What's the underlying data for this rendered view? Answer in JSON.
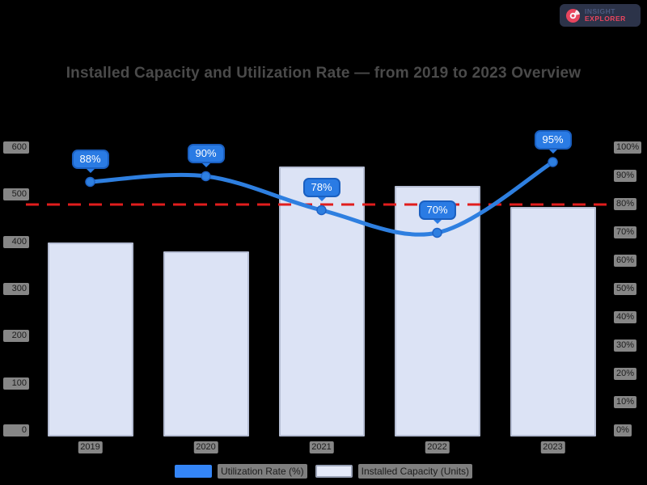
{
  "logo": {
    "line1": "INSIGHT",
    "line2": "EXPLORER"
  },
  "title": "Installed Capacity and Utilization Rate — from 2019 to 2023 Overview",
  "chart_data": {
    "type": "bar",
    "title": "Installed Capacity and Utilization Rate — from 2019 to 2023 Overview",
    "categories": [
      "2019",
      "2020",
      "2021",
      "2022",
      "2023"
    ],
    "series": [
      {
        "name": "Utilization Rate (%)",
        "chart_type": "line",
        "axis": "right",
        "values": [
          88,
          90,
          78,
          70,
          95
        ],
        "point_labels": [
          "88%",
          "90%",
          "78%",
          "70%",
          "95%"
        ],
        "color": "#2e7fe0"
      },
      {
        "name": "Installed Capacity (Units)",
        "chart_type": "bar",
        "axis": "left",
        "values": [
          400,
          380,
          560,
          520,
          475
        ],
        "color": "#dce3f5"
      }
    ],
    "left_axis": {
      "min": 0,
      "max": 600,
      "step": 100,
      "ticks": [
        "600",
        "500",
        "400",
        "300",
        "200",
        "100",
        "0"
      ]
    },
    "right_axis": {
      "min": 0,
      "max": 100,
      "step": 10,
      "ticks": [
        "100%",
        "90%",
        "80%",
        "70%",
        "60%",
        "50%",
        "40%",
        "30%",
        "20%",
        "10%",
        "0%"
      ]
    },
    "reference_line": {
      "axis": "right",
      "value": 80,
      "color": "#e11d1d",
      "style": "dashed"
    },
    "legend_position": "bottom",
    "grid": false,
    "background": "#000000"
  },
  "legend": {
    "items": [
      {
        "label": "Utilization Rate (%)",
        "swatch_color": "#3485f7",
        "series_type": "line"
      },
      {
        "label": "Installed Capacity (Units)",
        "swatch_color": "#e4e9f8",
        "series_type": "bar"
      }
    ]
  },
  "colors": {
    "background": "#000000",
    "title_text": "#4a4a4a",
    "line": "#2e7fe0",
    "badge_fill": "#2a7be4",
    "badge_border": "#1a5fc0",
    "bar_fill": "#dce3f5",
    "bar_border": "#b6bed4",
    "reference_line": "#e11d1d",
    "tick_chip_bg": "#868686",
    "tick_chip_text": "#1d1d1d"
  }
}
